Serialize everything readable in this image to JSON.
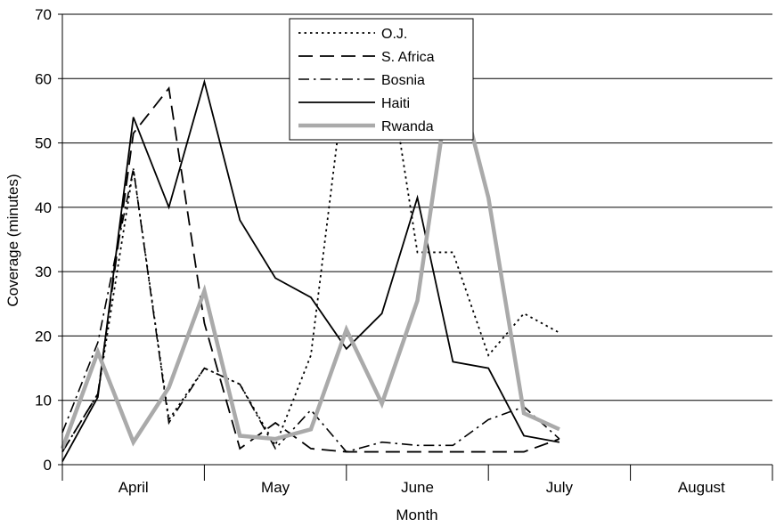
{
  "chart_data": {
    "type": "line",
    "title": "",
    "xlabel": "Month",
    "ylabel": "Coverage (minutes)",
    "ylim": [
      0,
      70
    ],
    "yticks": [
      0,
      10,
      20,
      30,
      40,
      50,
      60,
      70
    ],
    "categories": [
      "April",
      "May",
      "June",
      "July",
      "August"
    ],
    "x": [
      0,
      0.5,
      1,
      1.5,
      2,
      2.5,
      3,
      3.5,
      4,
      4.5,
      5,
      5.5,
      6,
      6.5,
      7,
      7.5,
      8,
      8.5,
      9,
      9.5,
      10
    ],
    "grid": "horizontal",
    "legend_position": "top-center",
    "series": [
      {
        "name": "O.J.",
        "style": "dotted",
        "color": "#000000",
        "values": [
          2,
          11,
          46,
          7,
          15,
          12.5,
          3,
          17,
          62,
          68.5,
          33,
          33,
          17,
          23.5,
          20.5,
          null,
          null,
          null,
          null,
          null,
          null
        ]
      },
      {
        "name": "S. Africa",
        "style": "dashed",
        "color": "#000000",
        "values": [
          2,
          11,
          51.5,
          58.5,
          22,
          2.5,
          6.5,
          2.5,
          2,
          2,
          2,
          2,
          2,
          2,
          4,
          null,
          null,
          null,
          null,
          null,
          null
        ]
      },
      {
        "name": "Bosnia",
        "style": "dashdot",
        "color": "#000000",
        "values": [
          5,
          19,
          46,
          6.5,
          15,
          12.5,
          2.5,
          8.5,
          2,
          3.5,
          3,
          3,
          7,
          9,
          4,
          null,
          null,
          null,
          null,
          null,
          null
        ]
      },
      {
        "name": "Haiti",
        "style": "solid",
        "color": "#000000",
        "values": [
          0.5,
          10.5,
          54,
          40,
          59.5,
          38,
          29,
          26,
          18,
          23.5,
          41.5,
          16,
          15,
          4.5,
          3.5,
          null,
          null,
          null,
          null,
          null,
          null
        ]
      },
      {
        "name": "Rwanda",
        "style": "thick",
        "color": "#aaaaaa",
        "values": [
          2.5,
          17.5,
          3.5,
          12,
          27,
          4.5,
          4,
          5.5,
          21,
          9.5,
          25.5,
          63,
          41.5,
          8,
          5.5,
          null,
          null,
          null,
          null,
          null,
          null
        ]
      }
    ]
  }
}
